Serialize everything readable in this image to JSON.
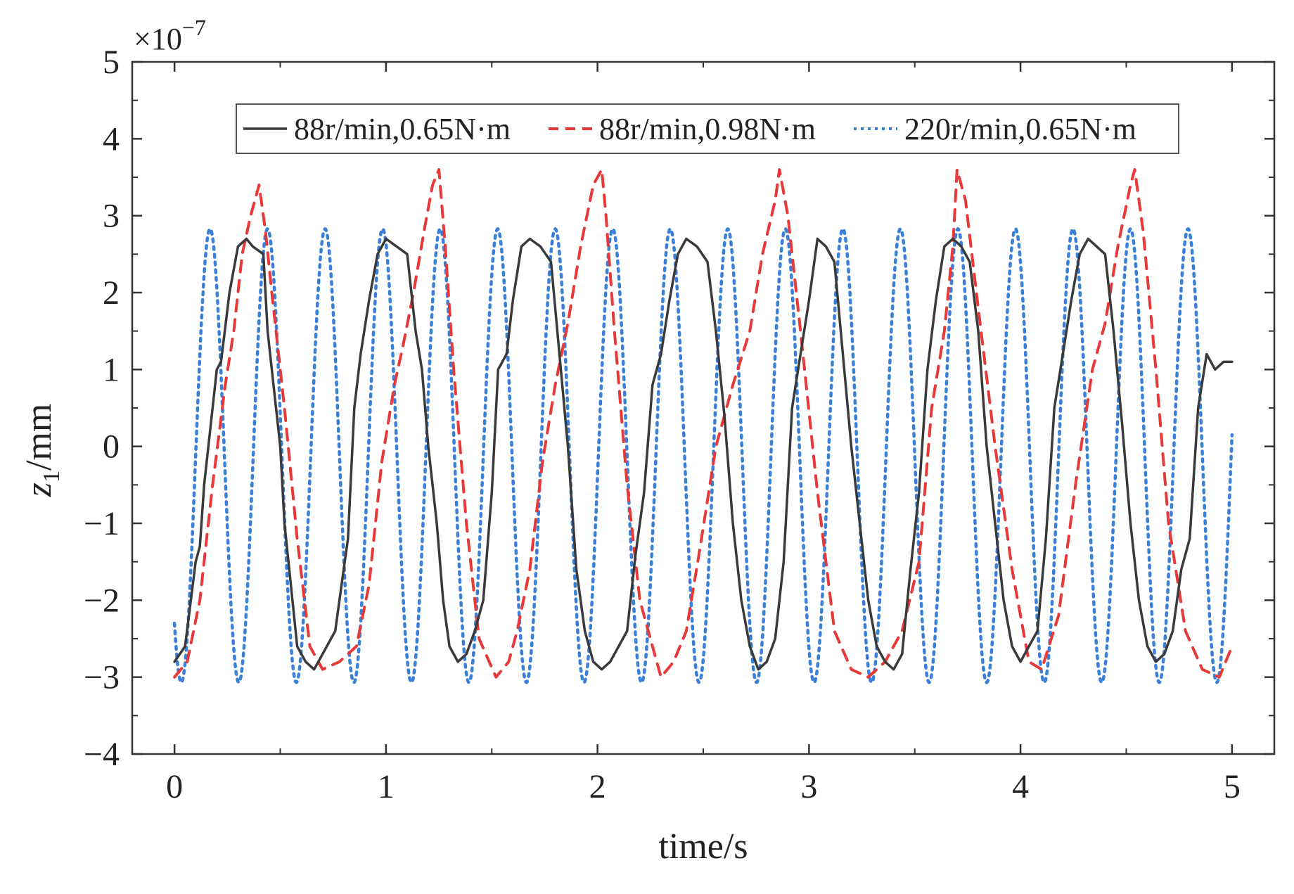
{
  "chart_data": {
    "type": "line",
    "xlabel": "time/s",
    "ylabel_main": "z",
    "ylabel_sub": "1",
    "ylabel_unit": "/mm",
    "multiplier_prefix": "×10",
    "multiplier_exp": "−7",
    "xlim": [
      -0.2,
      5.2
    ],
    "ylim": [
      -4,
      5
    ],
    "x_ticks": [
      0,
      1,
      2,
      3,
      4,
      5
    ],
    "x_tick_labels": [
      "0",
      "1",
      "2",
      "3",
      "4",
      "5"
    ],
    "y_ticks": [
      -4,
      -3,
      -2,
      -1,
      0,
      1,
      2,
      3,
      4,
      5
    ],
    "y_tick_labels": [
      "−4",
      "−3",
      "−2",
      "−1",
      "0",
      "1",
      "2",
      "3",
      "4",
      "5"
    ],
    "legend_position": "top",
    "series": [
      {
        "name": "88r/min,0.65N·m",
        "color": "#3a3a3a",
        "style": "solid",
        "x": [
          0.0,
          0.05,
          0.1,
          0.12,
          0.14,
          0.18,
          0.2,
          0.22,
          0.26,
          0.3,
          0.34,
          0.37,
          0.42,
          0.44,
          0.46,
          0.5,
          0.52,
          0.55,
          0.58,
          0.62,
          0.66,
          0.68,
          0.72,
          0.76,
          0.8,
          0.82,
          0.85,
          0.88,
          0.92,
          0.96,
          1.0,
          1.05,
          1.1,
          1.14,
          1.17,
          1.2,
          1.24,
          1.27,
          1.3,
          1.34,
          1.38,
          1.42,
          1.46,
          1.5,
          1.53,
          1.57,
          1.6,
          1.64,
          1.68,
          1.73,
          1.78,
          1.81,
          1.86,
          1.9,
          1.94,
          1.98,
          2.02,
          2.06,
          2.1,
          2.14,
          2.18,
          2.22,
          2.26,
          2.3,
          2.34,
          2.38,
          2.42,
          2.47,
          2.52,
          2.56,
          2.6,
          2.64,
          2.68,
          2.72,
          2.76,
          2.8,
          2.84,
          2.88,
          2.92,
          2.96,
          3.0,
          3.04,
          3.08,
          3.12,
          3.16,
          3.2,
          3.24,
          3.28,
          3.32,
          3.36,
          3.4,
          3.44,
          3.48,
          3.52,
          3.56,
          3.6,
          3.64,
          3.68,
          3.72,
          3.76,
          3.8,
          3.84,
          3.88,
          3.92,
          3.96,
          4.0,
          4.04,
          4.08,
          4.12,
          4.16,
          4.2,
          4.24,
          4.28,
          4.32,
          4.36,
          4.4,
          4.44,
          4.48,
          4.52,
          4.56,
          4.6,
          4.64,
          4.68,
          4.72,
          4.76,
          4.8,
          4.84,
          4.88,
          4.92,
          4.96,
          5.0
        ],
        "y": [
          -2.8,
          -2.6,
          -1.5,
          -1.3,
          -0.5,
          0.5,
          1.0,
          1.1,
          2.0,
          2.6,
          2.7,
          2.6,
          2.5,
          1.5,
          1.0,
          0.0,
          -1.0,
          -1.8,
          -2.6,
          -2.8,
          -2.9,
          -2.8,
          -2.6,
          -2.4,
          -1.6,
          -1.2,
          0.5,
          1.2,
          1.9,
          2.5,
          2.7,
          2.6,
          2.5,
          1.5,
          1.0,
          0.0,
          -1.0,
          -2.0,
          -2.6,
          -2.8,
          -2.7,
          -2.4,
          -2.0,
          -0.6,
          1.0,
          1.2,
          1.9,
          2.6,
          2.7,
          2.6,
          2.4,
          1.5,
          0.0,
          -1.6,
          -2.4,
          -2.8,
          -2.9,
          -2.8,
          -2.6,
          -2.4,
          -1.4,
          -0.6,
          0.8,
          1.2,
          1.9,
          2.5,
          2.7,
          2.6,
          2.4,
          1.5,
          0.4,
          -1.0,
          -2.0,
          -2.6,
          -2.9,
          -2.8,
          -2.5,
          -1.5,
          0.5,
          1.2,
          1.9,
          2.7,
          2.6,
          2.4,
          1.2,
          0.0,
          -1.0,
          -2.0,
          -2.6,
          -2.8,
          -2.9,
          -2.7,
          -1.6,
          -0.6,
          1.0,
          1.9,
          2.6,
          2.7,
          2.6,
          2.4,
          1.5,
          0.0,
          -1.0,
          -2.0,
          -2.6,
          -2.8,
          -2.6,
          -2.4,
          -1.2,
          0.5,
          1.2,
          1.9,
          2.5,
          2.7,
          2.6,
          2.5,
          1.5,
          0.3,
          -1.0,
          -2.0,
          -2.6,
          -2.8,
          -2.7,
          -2.4,
          -1.6,
          -1.2,
          0.5,
          1.2,
          1.0,
          1.1,
          1.1
        ]
      },
      {
        "name": "88r/min,0.98N·m",
        "color": "#e83838",
        "style": "dashed",
        "x": [
          0.0,
          0.06,
          0.12,
          0.18,
          0.24,
          0.28,
          0.32,
          0.36,
          0.4,
          0.43,
          0.46,
          0.52,
          0.58,
          0.64,
          0.7,
          0.78,
          0.86,
          0.92,
          0.98,
          1.04,
          1.08,
          1.13,
          1.18,
          1.22,
          1.25,
          1.28,
          1.32,
          1.38,
          1.44,
          1.52,
          1.58,
          1.62,
          1.68,
          1.74,
          1.8,
          1.86,
          1.92,
          1.98,
          2.02,
          2.04,
          2.08,
          2.14,
          2.2,
          2.3,
          2.36,
          2.42,
          2.48,
          2.56,
          2.64,
          2.72,
          2.78,
          2.84,
          2.86,
          2.9,
          2.96,
          3.04,
          3.12,
          3.2,
          3.28,
          3.36,
          3.44,
          3.52,
          3.58,
          3.64,
          3.68,
          3.7,
          3.74,
          3.8,
          3.88,
          3.96,
          4.04,
          4.1,
          4.18,
          4.26,
          4.34,
          4.4,
          4.46,
          4.52,
          4.54,
          4.58,
          4.64,
          4.7,
          4.78,
          4.86,
          4.94,
          5.0
        ],
        "y": [
          -3.0,
          -2.8,
          -2.0,
          -0.5,
          0.8,
          1.5,
          2.5,
          3.0,
          3.4,
          2.8,
          2.0,
          0.5,
          -1.2,
          -2.6,
          -2.9,
          -2.8,
          -2.6,
          -1.8,
          -0.2,
          0.8,
          1.3,
          2.0,
          2.8,
          3.4,
          3.6,
          2.6,
          1.0,
          -1.0,
          -2.5,
          -3.0,
          -2.8,
          -2.4,
          -1.6,
          -0.2,
          0.8,
          1.6,
          2.6,
          3.4,
          3.6,
          3.0,
          1.5,
          -0.5,
          -2.0,
          -3.0,
          -2.8,
          -2.4,
          -1.4,
          0.0,
          0.8,
          1.5,
          2.5,
          3.2,
          3.6,
          3.0,
          1.5,
          -0.6,
          -2.4,
          -2.9,
          -3.0,
          -2.8,
          -2.4,
          -1.5,
          0.5,
          1.5,
          2.6,
          3.6,
          3.2,
          1.8,
          0.0,
          -1.6,
          -2.8,
          -2.9,
          -2.2,
          -0.5,
          1.0,
          1.6,
          2.6,
          3.4,
          3.6,
          2.8,
          1.0,
          -1.0,
          -2.4,
          -2.9,
          -3.0,
          -2.6
        ]
      },
      {
        "name": "220r/min,0.65N·m",
        "color": "#3a7fd8",
        "style": "dotted",
        "period": 0.272,
        "phase": 0.168,
        "amplitude": 2.95,
        "offset": -0.12,
        "x_start": 0.0,
        "x_end": 5.0
      }
    ]
  }
}
